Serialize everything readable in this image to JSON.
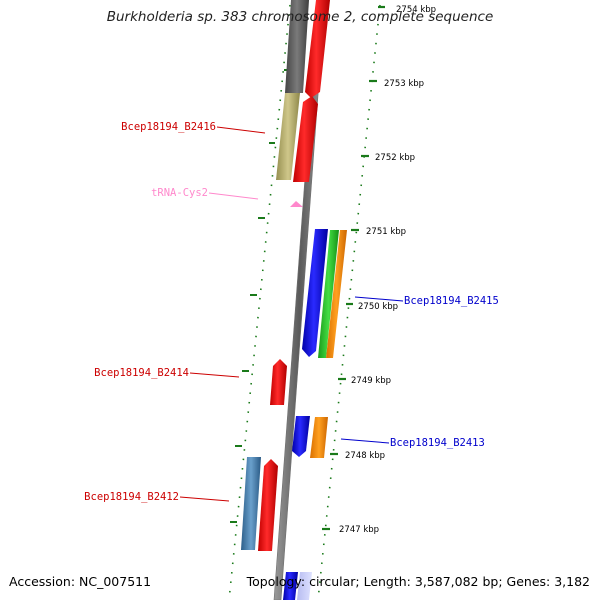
{
  "title": "Burkholderia sp. 383 chromosome 2, complete sequence",
  "footer": {
    "accession": "Accession: NC_007511",
    "topology": "Topology: circular; Length: 3,587,082 bp; Genes: 3,182"
  },
  "ruler": {
    "ticks": [
      "2754 kbp",
      "2753 kbp",
      "2752 kbp",
      "2751 kbp",
      "2750 kbp",
      "2749 kbp",
      "2748 kbp",
      "2747 kbp"
    ]
  },
  "genes": [
    {
      "label": "Bcep18194_B2416",
      "color": "#cc0000"
    },
    {
      "label": "tRNA-Cys2",
      "color": "#ff77bb"
    },
    {
      "label": "Bcep18194_B2415",
      "color": "#0000cc"
    },
    {
      "label": "Bcep18194_B2414",
      "color": "#cc0000"
    },
    {
      "label": "Bcep18194_B2413",
      "color": "#0000cc"
    },
    {
      "label": "Bcep18194_B2412",
      "color": "#cc0000"
    }
  ],
  "colors": {
    "backbone": "#8a8a8a",
    "forward_cds": "#ff0000",
    "reverse_cds": "#0000ff",
    "green_track": "#2bbf2b",
    "orange_track": "#ff8c00",
    "olive_track": "#b5ad6a",
    "steel_track": "#4682b4",
    "gray_track": "#666666",
    "trna": "#ff88cc",
    "tick_marks": "#1a7a1a"
  }
}
